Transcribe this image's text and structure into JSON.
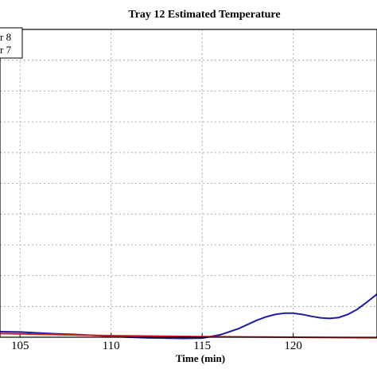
{
  "chart_data": {
    "type": "line",
    "title": "Tray  12 Estimated Temperature",
    "xlabel": "Time (min)",
    "ylabel": "",
    "xlim": [
      103.9,
      124.6
    ],
    "ylim": [
      0,
      10
    ],
    "x_ticks": [
      105,
      110,
      115,
      120
    ],
    "y_gridlines": [
      1,
      2,
      3,
      4,
      5,
      6,
      7,
      8,
      9
    ],
    "grid": true,
    "legend": {
      "placement": "top-left",
      "entries": [
        "r 8",
        "r 7"
      ]
    },
    "series": [
      {
        "color": "#1c1ca8",
        "x": [
          103.9,
          105,
          106,
          107,
          108,
          109,
          110,
          111,
          112,
          113,
          114,
          115,
          116,
          117,
          118,
          118.5,
          119,
          119.5,
          120,
          120.5,
          121,
          121.5,
          122,
          122.5,
          123,
          123.5,
          124,
          124.3,
          124.6
        ],
        "y": [
          0.18,
          0.17,
          0.14,
          0.11,
          0.09,
          0.06,
          0.03,
          0.0,
          -0.02,
          -0.03,
          -0.04,
          -0.03,
          0.08,
          0.28,
          0.55,
          0.66,
          0.74,
          0.78,
          0.78,
          0.74,
          0.68,
          0.63,
          0.61,
          0.64,
          0.74,
          0.9,
          1.12,
          1.26,
          1.4
        ]
      },
      {
        "color": "#cc2020",
        "x": [
          103.9,
          105,
          110,
          115,
          120,
          124.6
        ],
        "y": [
          0.12,
          0.11,
          0.05,
          0.02,
          0.0,
          -0.02
        ]
      }
    ]
  }
}
